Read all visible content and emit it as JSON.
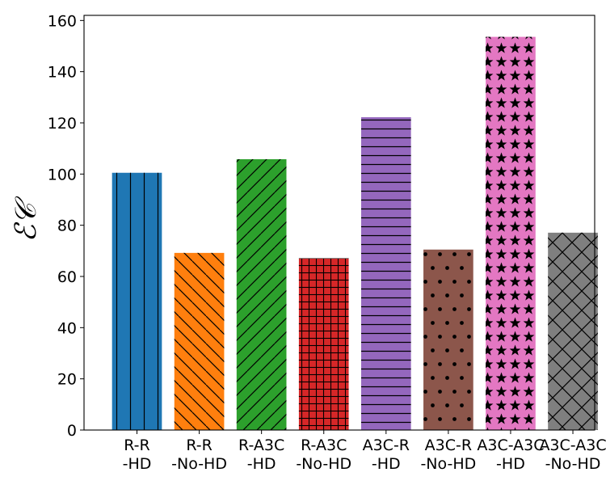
{
  "chart_data": {
    "type": "bar",
    "categories": [
      [
        "R-R",
        "-HD"
      ],
      [
        "R-R",
        "-No-HD"
      ],
      [
        "R-A3C",
        "-HD"
      ],
      [
        "R-A3C",
        "-No-HD"
      ],
      [
        "A3C-R",
        "-HD"
      ],
      [
        "A3C-R",
        "-No-HD"
      ],
      [
        "A3C-A3C",
        "-HD"
      ],
      [
        "A3C-A3C",
        "-No-HD"
      ]
    ],
    "values": [
      100.5,
      69.2,
      105.8,
      67.1,
      122.2,
      70.5,
      153.6,
      77.1
    ],
    "colors": [
      "#1f77b4",
      "#ff7f0e",
      "#2ca02c",
      "#d62728",
      "#9467bd",
      "#8c564b",
      "#e377c2",
      "#7f7f7f"
    ],
    "hatches": [
      "vertical",
      "back-diagonal",
      "forward-diagonal",
      "grid",
      "horizontal",
      "dots",
      "stars",
      "cross-diagonal"
    ],
    "title": "",
    "xlabel": "",
    "ylabel": "ℰ𝒞",
    "ylim": [
      0,
      162
    ],
    "yticks": [
      0,
      20,
      40,
      60,
      80,
      100,
      120,
      140,
      160
    ],
    "grid": false,
    "legend": "none"
  }
}
